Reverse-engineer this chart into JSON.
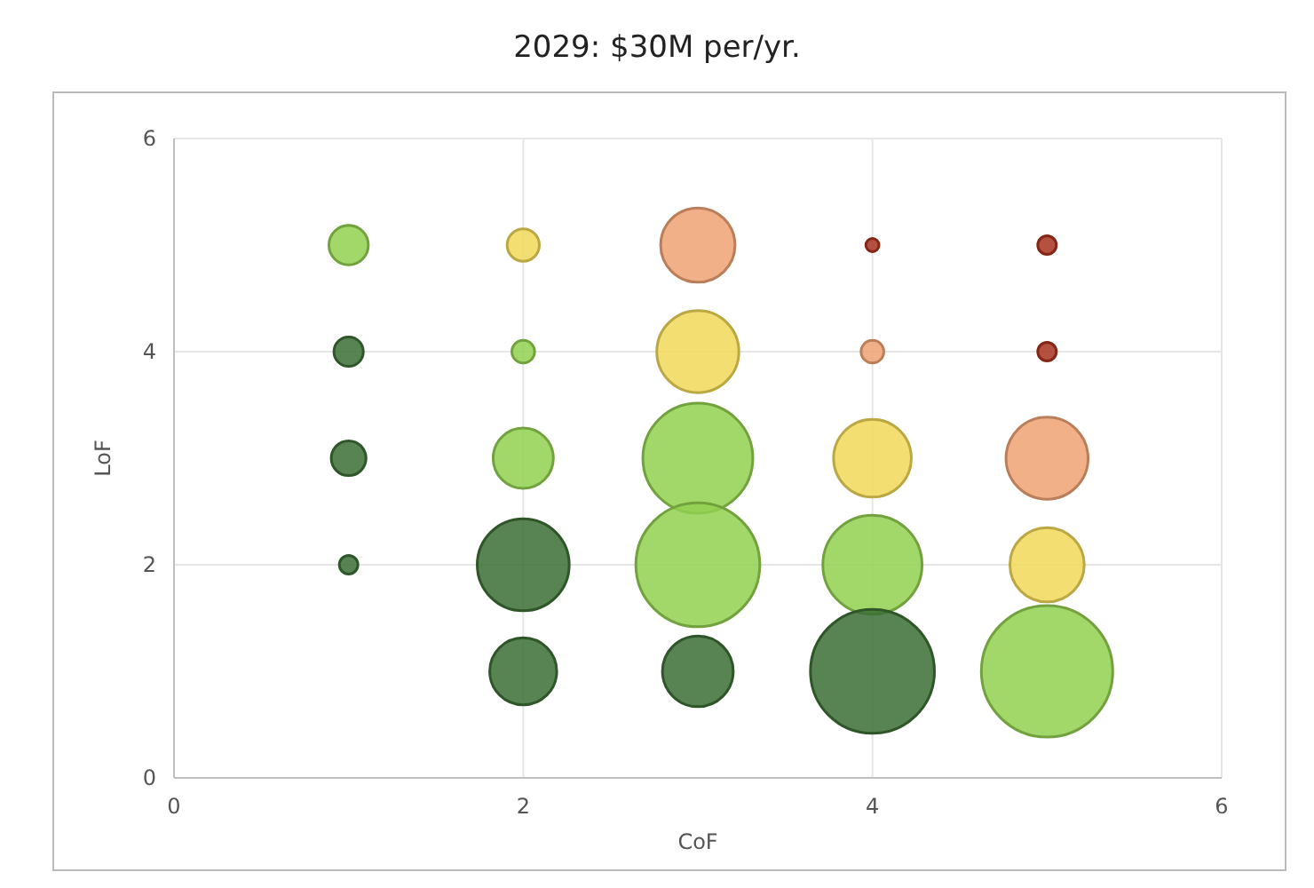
{
  "chart_data": {
    "type": "bubble",
    "title": "2029: $30M per/yr.",
    "xlabel": "CoF",
    "ylabel": "LoF",
    "xlim": [
      0,
      6
    ],
    "ylim": [
      0,
      6
    ],
    "xticks": [
      0,
      2,
      4,
      6
    ],
    "yticks": [
      0,
      2,
      4,
      6
    ],
    "grid": true,
    "series": [
      {
        "x": [
          1,
          1,
          1,
          1,
          2,
          2,
          2,
          2,
          2,
          3,
          3,
          3,
          3,
          3,
          4,
          4,
          4,
          4,
          4,
          5,
          5,
          5,
          5,
          5
        ],
        "values": [
          5,
          4,
          3,
          2,
          5,
          4,
          3,
          2,
          1,
          5,
          4,
          3,
          2,
          1,
          5,
          4,
          3,
          2,
          1,
          5,
          4,
          3,
          2,
          1
        ],
        "sizes": [
          0.09,
          0.05,
          0.07,
          0.02,
          0.06,
          0.03,
          0.21,
          0.49,
          0.26,
          0.32,
          0.39,
          0.7,
          0.89,
          0.29,
          0.01,
          0.03,
          0.35,
          0.57,
          0.89,
          0.02,
          0.02,
          0.39,
          0.32,
          1
        ],
        "colors": [
          "#92d050",
          "#3b6e35",
          "#3b6e35",
          "#3b6e35",
          "#f0d858",
          "#92d050",
          "#92d050",
          "#3b6e35",
          "#3b6e35",
          "#f0a274",
          "#f0d858",
          "#92d050",
          "#92d050",
          "#3b6e35",
          "#a8321e",
          "#f0a274",
          "#f0d858",
          "#92d050",
          "#3b6e35",
          "#a8321e",
          "#a8321e",
          "#f0a274",
          "#f0d858",
          "#92d050"
        ]
      }
    ]
  }
}
